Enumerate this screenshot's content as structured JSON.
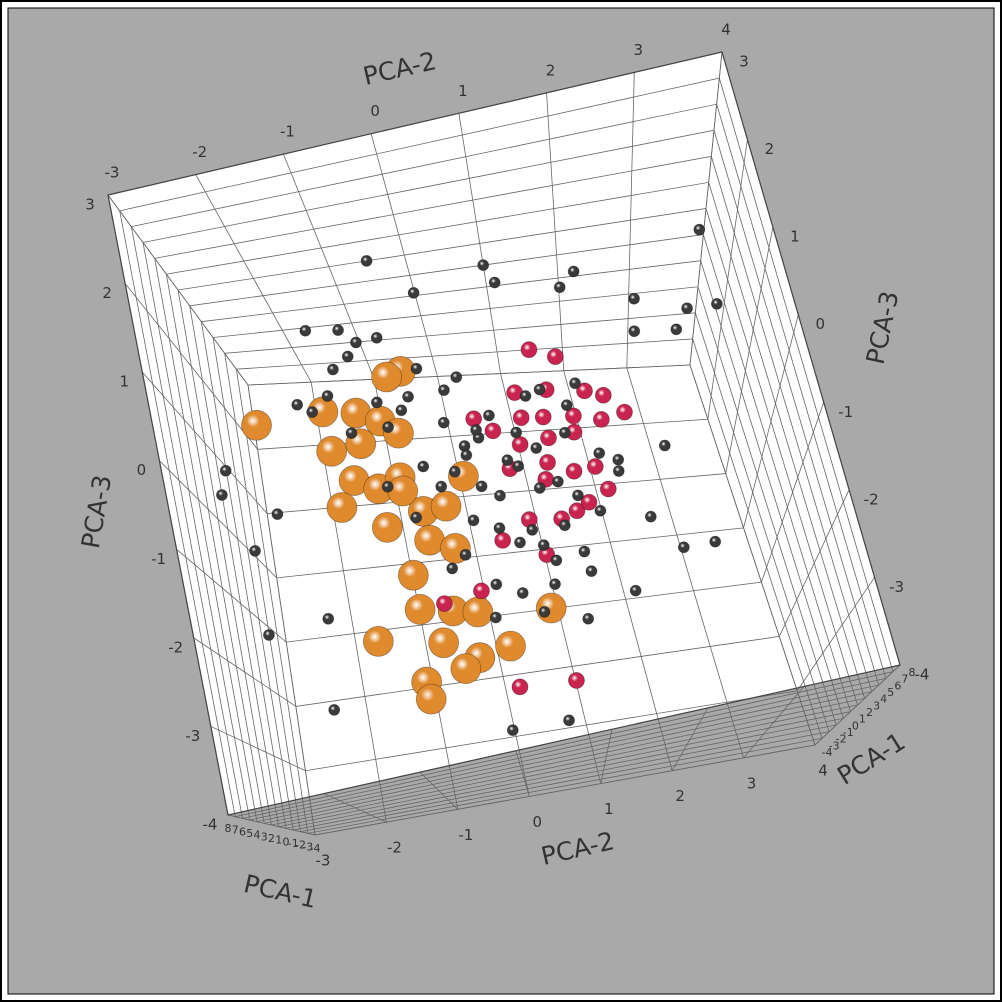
{
  "chart_data": {
    "type": "scatter3d",
    "xlabel": "PCA-1",
    "ylabel": "PCA-2",
    "zlabel": "PCA-3",
    "xlim": [
      -4,
      8
    ],
    "ylim": [
      -3,
      4
    ],
    "zlim": [
      -4,
      3
    ],
    "xticks": [
      -4,
      -3,
      -2,
      -1,
      0,
      1,
      2,
      3,
      4,
      5,
      6,
      7,
      8
    ],
    "yticks": [
      -3,
      -2,
      -1,
      0,
      1,
      2,
      3,
      4
    ],
    "zticks": [
      -4,
      -3,
      -2,
      -1,
      0,
      1,
      2,
      3
    ],
    "grid": true,
    "series": [
      {
        "color": "#e08a2e",
        "size": 15,
        "x": [
          1,
          1.2,
          0.8,
          1,
          1.1,
          0.9,
          1,
          1.2,
          0.8,
          1,
          1,
          1.2,
          0.8,
          1,
          1.1,
          0.9,
          1,
          1.2,
          0.8,
          1,
          1,
          1.2,
          0.8,
          1,
          1.1,
          0.9,
          1,
          1.2,
          0.8,
          1,
          1,
          1.1
        ],
        "y": [
          -2.4,
          -1.5,
          -1.1,
          -0.8,
          -0.4,
          -0.6,
          -1.5,
          -1.1,
          -1.3,
          -1.0,
          -0.7,
          -1.5,
          -1.0,
          -0.5,
          -0.2,
          0.1,
          -0.5,
          -0.2,
          -0.8,
          -0.8,
          -0.4,
          -0.1,
          -1.4,
          -0.6,
          -0.2,
          0.2,
          -0.4,
          -0.9,
          -0.9,
          0.8,
          -0.6,
          -0.7
        ],
        "z": [
          1.3,
          1.3,
          1.3,
          1.1,
          1.7,
          1.7,
          0.8,
          0.8,
          0.4,
          0.2,
          0.3,
          0.0,
          -0.3,
          -0.2,
          -0.2,
          0.2,
          -0.6,
          -0.8,
          -1.0,
          -1.5,
          -1.6,
          -1.7,
          -1.8,
          -2.0,
          -2.3,
          -2.2,
          -2.4,
          -2.5,
          -2.7,
          -1.8,
          0.9,
          0.1
        ]
      },
      {
        "color": "#c8244f",
        "size": 8,
        "x": [
          1.2,
          0.6,
          1.6,
          0.9,
          1.4,
          0.4,
          1.0,
          1.8,
          0.7,
          1.3,
          1.2,
          0.6,
          1.6,
          0.9,
          1.4,
          0.4,
          1.0,
          1.8,
          0.7,
          1.3,
          1.2,
          0.6,
          1.6,
          0.9,
          1.4,
          0.4,
          1.0,
          1.8,
          0.7,
          1.3,
          1.2,
          0.6
        ],
        "y": [
          0.2,
          0.9,
          1.3,
          1.9,
          2.3,
          -0.5,
          0.0,
          1.6,
          0.4,
          1.4,
          1.0,
          1.3,
          1.6,
          1.2,
          0.9,
          1.7,
          1.5,
          1.1,
          0.8,
          1.4,
          2.0,
          1.8,
          0.6,
          1.2,
          0.7,
          1.9,
          1.0,
          0.4,
          1.6,
          2.1,
          0.9,
          1.3
        ],
        "z": [
          -2.8,
          -2.8,
          1.6,
          1.1,
          0.6,
          -1.4,
          -1.4,
          1.4,
          1.0,
          -0.6,
          0.8,
          0.6,
          0.4,
          0.2,
          0.4,
          0.9,
          0.0,
          -0.2,
          -0.5,
          1.1,
          0.6,
          0.1,
          0.6,
          -0.6,
          0.1,
          -0.2,
          1.2,
          -0.9,
          -0.4,
          0.9,
          -1.1,
          0.9
        ]
      },
      {
        "color": "#3a3a3a",
        "size": 5.5,
        "x": [
          1,
          0.5,
          1.5,
          2,
          0,
          1.2,
          0.8,
          1.8,
          0.3,
          1,
          1,
          0.5,
          1.5,
          2,
          0,
          1.2,
          0.8,
          1.8,
          0.3,
          1,
          1,
          0.5,
          1.5,
          2,
          0,
          1.2,
          0.8,
          1.8,
          0.3,
          1,
          1,
          0.5,
          1.5,
          2,
          0,
          1.2,
          0.8,
          1.8,
          0.3,
          1,
          1,
          0.5,
          1.5,
          2,
          0,
          1.2,
          0.8,
          1.8,
          0.3,
          1,
          1,
          0.5,
          1.5,
          2,
          0,
          1.2,
          0.8,
          1.8,
          0.3,
          1,
          1,
          0.5,
          1.5,
          2,
          0,
          1.2,
          0.8,
          1.8,
          0.3,
          1,
          1,
          0.5,
          1.5,
          2,
          0,
          1.2,
          0.8,
          1.8,
          0.3,
          1,
          1,
          0.5,
          1.5,
          2,
          0,
          1.2,
          0.8,
          1.8,
          0.3
        ],
        "y": [
          1.0,
          2.2,
          3.9,
          -2.9,
          -2.8,
          -2.7,
          -2.1,
          0.0,
          0.7,
          3.5,
          3.9,
          2.9,
          1.9,
          -0.5,
          -1.6,
          0.0,
          1.1,
          3.2,
          2.8,
          2.6,
          3.0,
          1.9,
          1.2,
          -2.8,
          -1.9,
          2.7,
          2.1,
          -1.9,
          -2.4,
          -1.1,
          -0.9,
          -1.3,
          -0.6,
          -1.0,
          -0.4,
          -1.4,
          -0.8,
          -1.6,
          -0.2,
          -0.5,
          -1.2,
          0.1,
          -0.7,
          0.3,
          0.2,
          0.6,
          0.9,
          0.4,
          0.0,
          0.7,
          1.1,
          0.3,
          -0.2,
          0.8,
          1.3,
          0.5,
          0.1,
          1.0,
          1.5,
          0.4,
          0.8,
          -0.1,
          1.2,
          0.6,
          0.2,
          1.0,
          0.5,
          0.9,
          0.1,
          1.4,
          1.7,
          1.9,
          1.6,
          2.0,
          -0.4,
          -0.6,
          -0.3,
          1.3,
          0.0,
          1.8,
          2.3,
          -0.9,
          0.7,
          1.1,
          0.4,
          1.5,
          0.9,
          0.2,
          1.4
        ],
        "z": [
          3.0,
          2.9,
          2.9,
          0.3,
          -0.2,
          -1.5,
          -2.6,
          -3.4,
          -3.3,
          2.0,
          2.0,
          2.4,
          2.4,
          3.0,
          2.7,
          2.7,
          2.8,
          1.5,
          2.0,
          -1.3,
          -1.3,
          -1.7,
          -2.1,
          0.6,
          1.7,
          0.1,
          0.1,
          -1.5,
          0.2,
          2.4,
          2.2,
          2.0,
          2.1,
          1.8,
          1.6,
          1.5,
          1.4,
          1.2,
          1.9,
          1.2,
          1.0,
          1.5,
          0.9,
          1.3,
          0.8,
          0.9,
          0.7,
          0.5,
          0.4,
          0.3,
          0.4,
          0.1,
          0.0,
          0.0,
          0.1,
          -0.2,
          -0.4,
          -0.3,
          -0.2,
          -0.6,
          -0.7,
          -0.8,
          -0.8,
          -1.0,
          -1.2,
          -1.2,
          -1.5,
          -1.6,
          -1.7,
          -1.4,
          -0.6,
          0.3,
          0.8,
          -0.3,
          0.6,
          -0.3,
          -1.0,
          1.0,
          1.1,
          1.2,
          -0.8,
          0.3,
          -1.9,
          0.9,
          1.0,
          0.5,
          -0.9,
          0.3,
          -1.0
        ]
      }
    ]
  }
}
